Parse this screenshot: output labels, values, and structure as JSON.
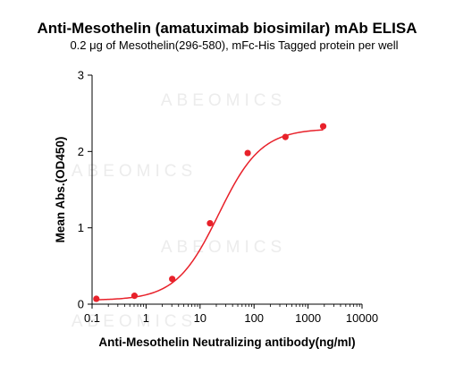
{
  "chart_data": {
    "type": "scatter",
    "title": "Anti-Mesothelin (amatuximab biosimilar) mAb ELISA",
    "subtitle": "0.2 μg of Mesothelin(296-580), mFc-His Tagged protein per well",
    "xlabel": "Anti-Mesothelin Neutralizing antibody(ng/ml)",
    "ylabel": "Mean Abs.(OD450)",
    "xscale": "log",
    "xlim": [
      0.1,
      10000
    ],
    "ylim": [
      0,
      3
    ],
    "xticks": [
      "0.1",
      "1",
      "10",
      "100",
      "1000",
      "10000"
    ],
    "yticks": [
      "0",
      "1",
      "2",
      "3"
    ],
    "watermark": "ABEOMICS",
    "grid": false,
    "legend": "none",
    "series": [
      {
        "color": "#e8212a",
        "x": [
          0.12,
          0.61,
          3.05,
          15.3,
          76.3,
          381,
          1907
        ],
        "y": [
          0.07,
          0.11,
          0.33,
          1.06,
          1.98,
          2.19,
          2.33
        ],
        "fit": "4PL"
      }
    ]
  }
}
